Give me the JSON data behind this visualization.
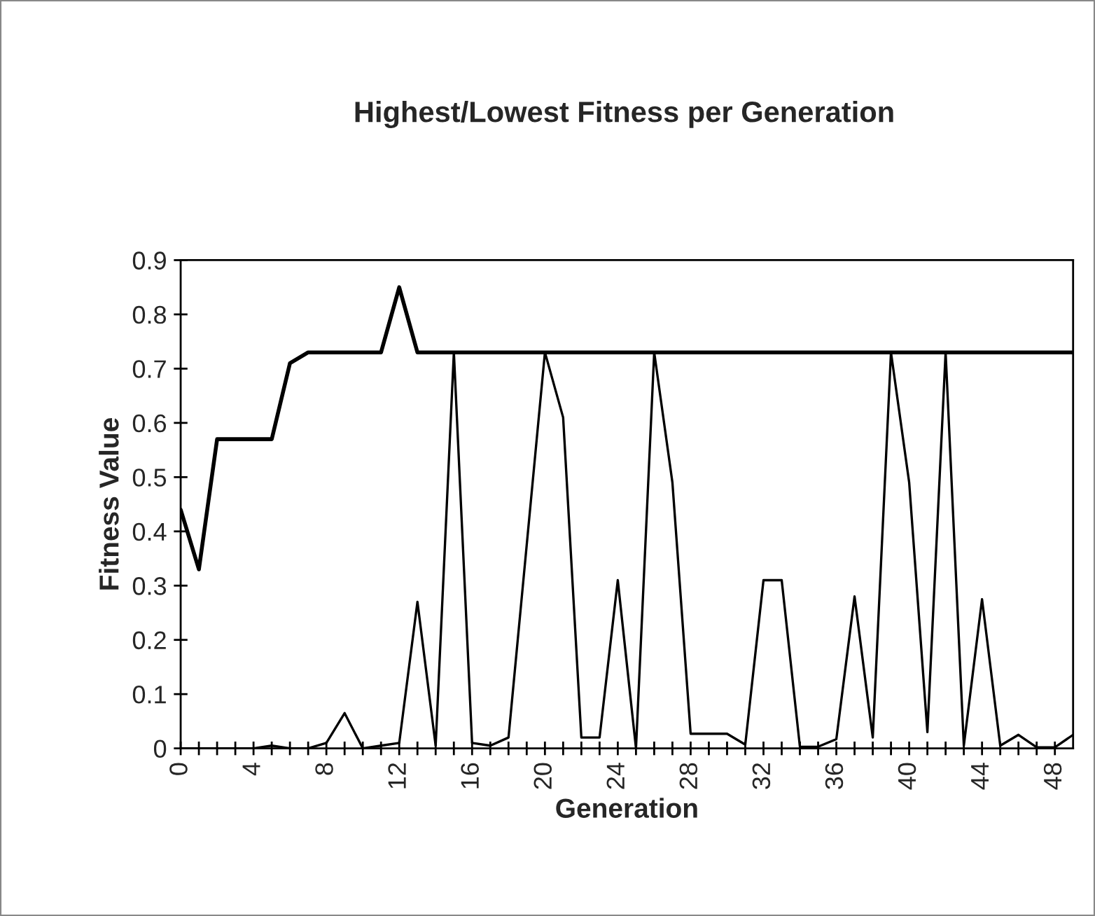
{
  "chart_data": {
    "type": "line",
    "title": "Highest/Lowest Fitness per Generation",
    "xlabel": "Generation",
    "ylabel": "Fitness Value",
    "x": [
      0,
      1,
      2,
      3,
      4,
      5,
      6,
      7,
      8,
      9,
      10,
      11,
      12,
      13,
      14,
      15,
      16,
      17,
      18,
      19,
      20,
      21,
      22,
      23,
      24,
      25,
      26,
      27,
      28,
      29,
      30,
      31,
      32,
      33,
      34,
      35,
      36,
      37,
      38,
      39,
      40,
      41,
      42,
      43,
      44,
      45,
      46,
      47,
      48,
      49
    ],
    "series": [
      {
        "color": "#000000",
        "values": [
          0.44,
          0.33,
          0.57,
          0.57,
          0.57,
          0.57,
          0.71,
          0.73,
          0.73,
          0.73,
          0.73,
          0.73,
          0.85,
          0.73,
          0.73,
          0.73,
          0.73,
          0.73,
          0.73,
          0.73,
          0.73,
          0.73,
          0.73,
          0.73,
          0.73,
          0.73,
          0.73,
          0.73,
          0.73,
          0.73,
          0.73,
          0.73,
          0.73,
          0.73,
          0.73,
          0.73,
          0.73,
          0.73,
          0.73,
          0.73,
          0.73,
          0.73,
          0.73,
          0.73,
          0.73,
          0.73,
          0.73,
          0.73,
          0.73,
          0.73
        ]
      },
      {
        "color": "#000000",
        "values": [
          0,
          0,
          0,
          0,
          0,
          0.005,
          0,
          0,
          0.01,
          0.065,
          0,
          0.005,
          0.01,
          0.27,
          0.005,
          0.73,
          0.01,
          0.005,
          0.02,
          0.375,
          0.73,
          0.61,
          0.02,
          0.02,
          0.31,
          0,
          0.73,
          0.49,
          0.027,
          0.027,
          0.027,
          0.007,
          0.31,
          0.31,
          0.003,
          0.003,
          0.017,
          0.28,
          0.02,
          0.73,
          0.49,
          0.03,
          0.73,
          0.005,
          0.275,
          0.005,
          0.025,
          0.002,
          0.002,
          0.025
        ]
      }
    ],
    "xlim": [
      0,
      49
    ],
    "xticks": [
      0,
      {
        "value": 1,
        "label": null
      },
      {
        "value": 2,
        "label": null
      },
      {
        "value": 3,
        "label": null
      },
      4,
      {
        "value": 5,
        "label": null
      },
      {
        "value": 6,
        "label": null
      },
      {
        "value": 7,
        "label": null
      },
      8,
      {
        "value": 9,
        "label": null
      },
      {
        "value": 10,
        "label": null
      },
      {
        "value": 11,
        "label": null
      },
      12,
      {
        "value": 13,
        "label": null
      },
      {
        "value": 14,
        "label": null
      },
      {
        "value": 15,
        "label": null
      },
      16,
      {
        "value": 17,
        "label": null
      },
      {
        "value": 18,
        "label": null
      },
      {
        "value": 19,
        "label": null
      },
      20,
      {
        "value": 21,
        "label": null
      },
      {
        "value": 22,
        "label": null
      },
      {
        "value": 23,
        "label": null
      },
      24,
      {
        "value": 25,
        "label": null
      },
      {
        "value": 26,
        "label": null
      },
      {
        "value": 27,
        "label": null
      },
      28,
      {
        "value": 29,
        "label": null
      },
      {
        "value": 30,
        "label": null
      },
      {
        "value": 31,
        "label": null
      },
      32,
      {
        "value": 33,
        "label": null
      },
      {
        "value": 34,
        "label": null
      },
      {
        "value": 35,
        "label": null
      },
      36,
      {
        "value": 37,
        "label": null
      },
      {
        "value": 38,
        "label": null
      },
      {
        "value": 39,
        "label": null
      },
      40,
      {
        "value": 41,
        "label": null
      },
      {
        "value": 42,
        "label": null
      },
      {
        "value": 43,
        "label": null
      },
      44,
      {
        "value": 45,
        "label": null
      },
      {
        "value": 46,
        "label": null
      },
      {
        "value": 47,
        "label": null
      },
      48
    ],
    "ylim": [
      0,
      0.9
    ],
    "yticks": [
      0,
      0.1,
      0.2,
      0.3,
      0.4,
      0.5,
      0.6,
      0.7,
      0.8,
      0.9
    ],
    "grid": false,
    "legend": false,
    "marker": "none",
    "line_style": "solid"
  }
}
